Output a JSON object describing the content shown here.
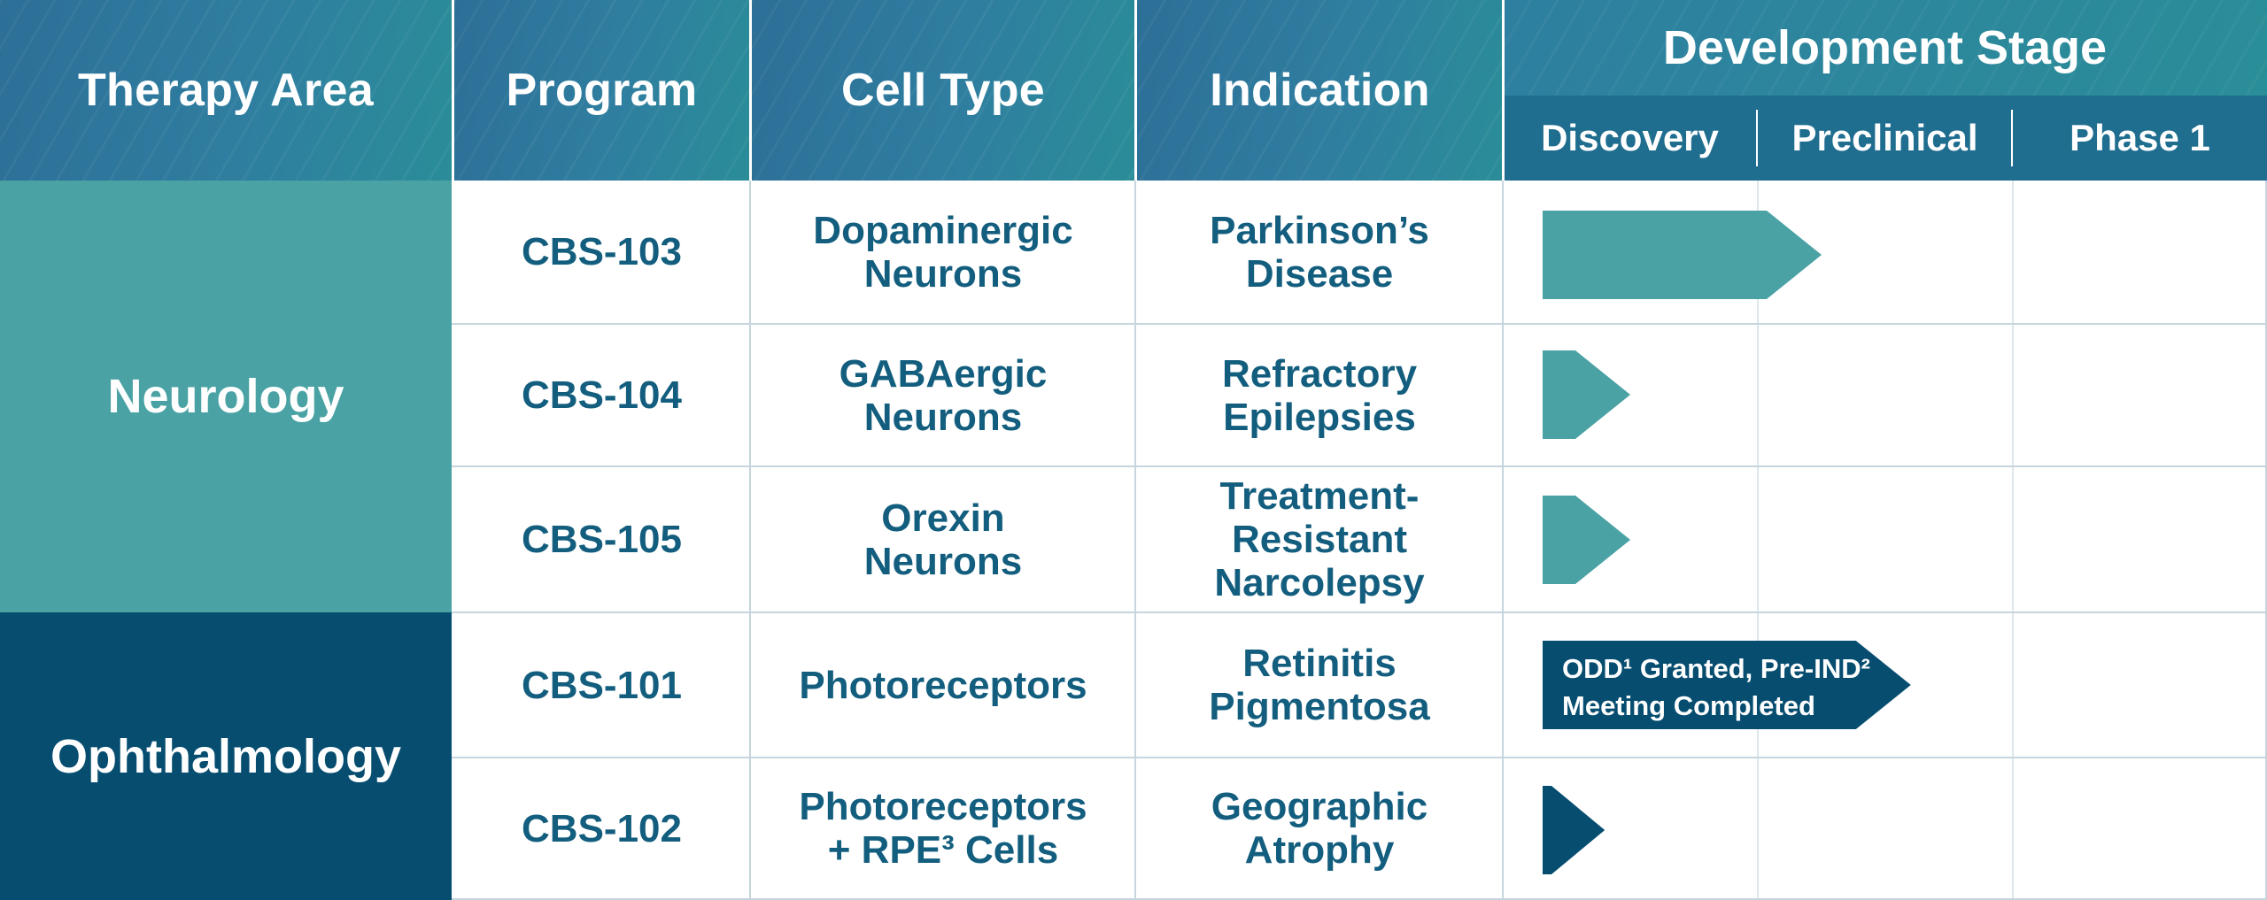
{
  "colors": {
    "header": "#2e7aa0",
    "neurology": "#4aa2a4",
    "ophthalmology": "#064d70",
    "text": "#135e7e",
    "grid": "#c6d5de"
  },
  "headers": {
    "therapy_area": "Therapy Area",
    "program": "Program",
    "cell_type": "Cell Type",
    "indication": "Indication",
    "development_stage": "Development Stage"
  },
  "therapy_areas": [
    {
      "label": "Neurology",
      "color": "#4aa2a4"
    },
    {
      "label": "Ophthalmology",
      "color": "#064d70"
    }
  ],
  "chart_data": {
    "type": "table",
    "stages": [
      "Discovery",
      "Preclinical",
      "Phase 1"
    ],
    "rows": [
      {
        "program": "CBS-103",
        "cell_type": "Dopaminergic\nNeurons",
        "indication": "Parkinson’s\nDisease",
        "area": "Neurology",
        "progress": 1.25,
        "bar_color": "#4aa2a4",
        "annotation_line1": "",
        "annotation_line2": ""
      },
      {
        "program": "CBS-104",
        "cell_type": "GABAergic\nNeurons",
        "indication": "Refractory\nEpilepsies",
        "area": "Neurology",
        "progress": 0.5,
        "bar_color": "#4aa2a4",
        "annotation_line1": "",
        "annotation_line2": ""
      },
      {
        "program": "CBS-105",
        "cell_type": "Orexin\nNeurons",
        "indication": "Treatment-\nResistant\nNarcolepsy",
        "area": "Neurology",
        "progress": 0.5,
        "bar_color": "#4aa2a4",
        "annotation_line1": "",
        "annotation_line2": ""
      },
      {
        "program": "CBS-101",
        "cell_type": "Photoreceptors",
        "indication": "Retinitis\nPigmentosa",
        "area": "Ophthalmology",
        "progress": 1.6,
        "bar_color": "#064d70",
        "annotation_line1": "ODD¹ Granted, Pre-IND²",
        "annotation_line2": "Meeting Completed"
      },
      {
        "program": "CBS-102",
        "cell_type": "Photoreceptors\n+ RPE³ Cells",
        "indication": "Geographic\nAtrophy",
        "area": "Ophthalmology",
        "progress": 0.4,
        "bar_color": "#064d70",
        "annotation_line1": "",
        "annotation_line2": ""
      }
    ]
  }
}
